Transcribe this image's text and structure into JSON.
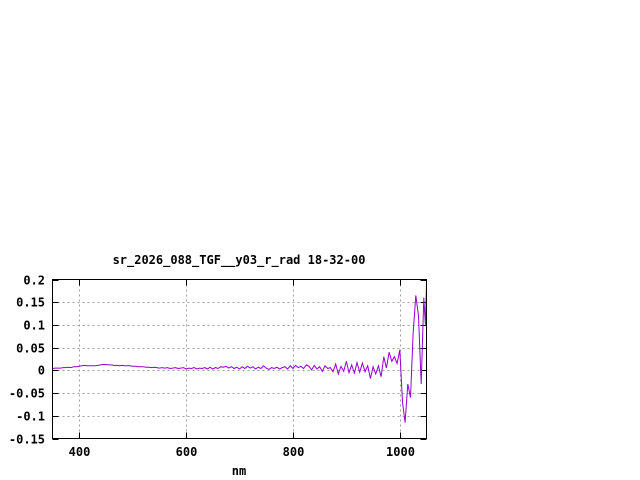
{
  "chart_data": {
    "type": "line",
    "title": "sr_2026_088_TGF__y03_r_rad 18-32-00",
    "xlabel": "nm",
    "ylabel": "",
    "xlim": [
      350,
      1050
    ],
    "ylim": [
      -0.15,
      0.2
    ],
    "xticks": [
      400,
      600,
      800,
      1000
    ],
    "yticks": [
      -0.15,
      -0.1,
      -0.05,
      0,
      0.05,
      0.1,
      0.15,
      0.2
    ],
    "ytick_labels": [
      "-0.15",
      "-0.1",
      "-0.05",
      "0",
      "0.05",
      "0.1",
      "0.15",
      "0.2"
    ],
    "grid": true,
    "line_color": "#9400d3",
    "series": [
      {
        "x": [
          350,
          355,
          360,
          365,
          370,
          375,
          380,
          385,
          390,
          395,
          400,
          405,
          410,
          415,
          420,
          425,
          430,
          435,
          440,
          445,
          450,
          455,
          460,
          465,
          470,
          475,
          480,
          485,
          490,
          495,
          500,
          505,
          510,
          515,
          520,
          525,
          530,
          535,
          540,
          545,
          550,
          555,
          560,
          565,
          570,
          575,
          580,
          585,
          590,
          595,
          600,
          605,
          610,
          615,
          620,
          625,
          630,
          635,
          640,
          645,
          650,
          655,
          660,
          665,
          670,
          675,
          680,
          685,
          690,
          695,
          700,
          705,
          710,
          715,
          720,
          725,
          730,
          735,
          740,
          745,
          750,
          755,
          760,
          765,
          770,
          775,
          780,
          785,
          790,
          795,
          800,
          805,
          810,
          815,
          820,
          825,
          830,
          835,
          840,
          845,
          850,
          855,
          860,
          865,
          870,
          875,
          880,
          885,
          890,
          895,
          900,
          905,
          910,
          915,
          920,
          925,
          930,
          935,
          940,
          945,
          950,
          955,
          960,
          965,
          970,
          975,
          980,
          985,
          990,
          995,
          1000,
          1005,
          1010,
          1015,
          1020,
          1025,
          1030,
          1035,
          1040,
          1045,
          1048,
          1050
        ],
        "y": [
          0.004,
          0.005,
          0.005,
          0.005,
          0.006,
          0.006,
          0.007,
          0.006,
          0.008,
          0.008,
          0.009,
          0.01,
          0.011,
          0.01,
          0.01,
          0.01,
          0.01,
          0.011,
          0.012,
          0.013,
          0.013,
          0.012,
          0.012,
          0.011,
          0.011,
          0.01,
          0.011,
          0.01,
          0.01,
          0.01,
          0.009,
          0.009,
          0.008,
          0.008,
          0.008,
          0.007,
          0.007,
          0.006,
          0.007,
          0.006,
          0.005,
          0.006,
          0.005,
          0.006,
          0.004,
          0.005,
          0.006,
          0.004,
          0.005,
          0.006,
          0.003,
          0.005,
          0.004,
          0.006,
          0.003,
          0.005,
          0.004,
          0.006,
          0.003,
          0.007,
          0.003,
          0.006,
          0.004,
          0.008,
          0.007,
          0.009,
          0.005,
          0.008,
          0.004,
          0.007,
          0.003,
          0.008,
          0.004,
          0.009,
          0.005,
          0.008,
          0.003,
          0.007,
          0.004,
          0.01,
          0.005,
          0.002,
          0.006,
          0.004,
          0.007,
          0.003,
          0.006,
          0.008,
          0.003,
          0.01,
          0.004,
          0.011,
          0.006,
          0.009,
          0.004,
          0.012,
          0.009,
          0.001,
          0.011,
          0.003,
          0.008,
          -0.002,
          0.01,
          0.004,
          0.006,
          -0.003,
          0.014,
          -0.008,
          0.009,
          -0.002,
          0.02,
          -0.005,
          0.012,
          -0.006,
          0.017,
          -0.004,
          0.016,
          -0.003,
          0.01,
          -0.018,
          0.008,
          -0.008,
          0.01,
          -0.014,
          0.03,
          0.005,
          0.04,
          0.02,
          0.03,
          0.015,
          0.045,
          -0.07,
          -0.115,
          -0.03,
          -0.06,
          0.08,
          0.165,
          0.12,
          -0.03,
          0.16,
          0.1,
          0.19
        ]
      }
    ]
  }
}
